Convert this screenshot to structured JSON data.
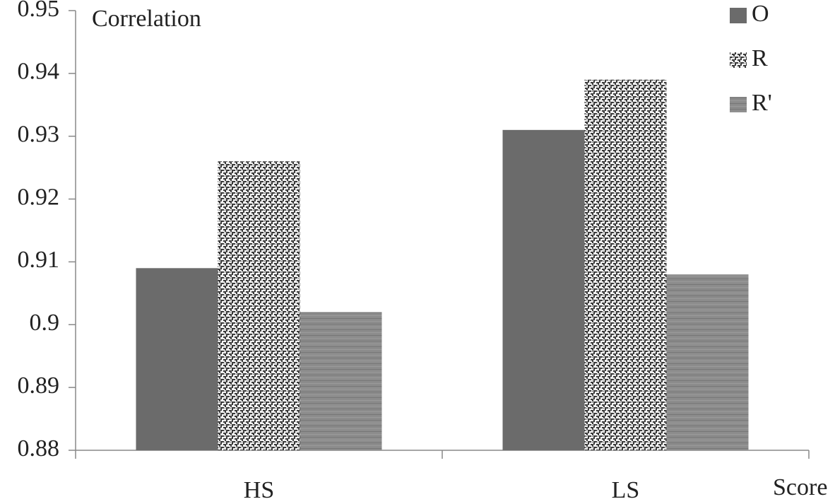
{
  "chart_data": {
    "type": "bar",
    "y_label": "Correlation",
    "x_label": "Score",
    "categories": [
      "HS",
      "LS"
    ],
    "series": [
      {
        "name": "O",
        "color": "#6b6b6b",
        "values": [
          0.909,
          0.931
        ]
      },
      {
        "name": "R",
        "color": "#3a3a3a",
        "values": [
          0.926,
          0.939
        ]
      },
      {
        "name": "R'",
        "color": "#8c8c8c",
        "values": [
          0.902,
          0.908
        ]
      }
    ],
    "ylim": [
      0.88,
      0.95
    ],
    "yticks": [
      0.88,
      0.89,
      0.9,
      0.91,
      0.92,
      0.93,
      0.94,
      0.95
    ],
    "legend": "top-right"
  }
}
